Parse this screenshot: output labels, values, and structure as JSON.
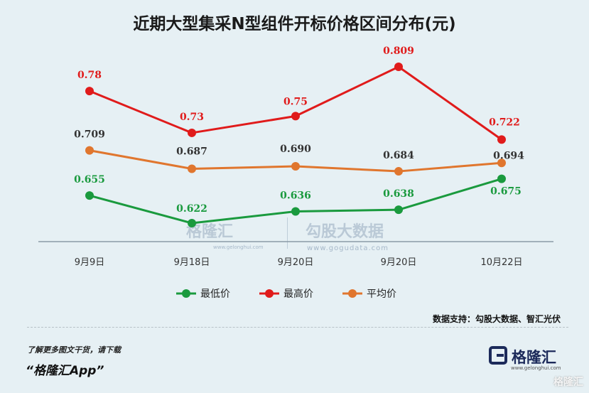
{
  "chart_data": {
    "type": "line",
    "title": "近期大型集采N型组件开标价格区间分布(元)",
    "categories": [
      "9月9日",
      "9月18日",
      "9月20日",
      "9月20日",
      "10月22日"
    ],
    "series": [
      {
        "name": "最低价",
        "color": "#1a9a3e",
        "values": [
          0.655,
          0.622,
          0.636,
          0.638,
          0.675
        ],
        "labels": [
          "0.655",
          "0.622",
          "0.636",
          "0.638",
          "0.675"
        ]
      },
      {
        "name": "最高价",
        "color": "#e01b1b",
        "values": [
          0.78,
          0.73,
          0.75,
          0.809,
          0.722
        ],
        "labels": [
          "0.78",
          "0.73",
          "0.75",
          "0.809",
          "0.722"
        ]
      },
      {
        "name": "平均价",
        "color": "#e0762e",
        "values": [
          0.709,
          0.687,
          0.69,
          0.684,
          0.694
        ],
        "labels": [
          "0.709",
          "0.687",
          "0.690",
          "0.684",
          "0.694"
        ]
      }
    ],
    "label_color_avg": "#333333",
    "legend_position": "bottom",
    "grid": false
  },
  "source": "数据支持：勾股大数据、智汇光伏",
  "promo": {
    "line1": "了解更多图文干货，请下载",
    "line2": "“格隆汇App”"
  },
  "logo": {
    "name": "格隆汇",
    "url": "www.gelonghui.com"
  },
  "watermark": {
    "left": "格隆汇",
    "left_url": "www.gelonghui.com",
    "right": "勾股大数据",
    "right_url": "www.gogudata.com",
    "corner": "格隆汇"
  }
}
